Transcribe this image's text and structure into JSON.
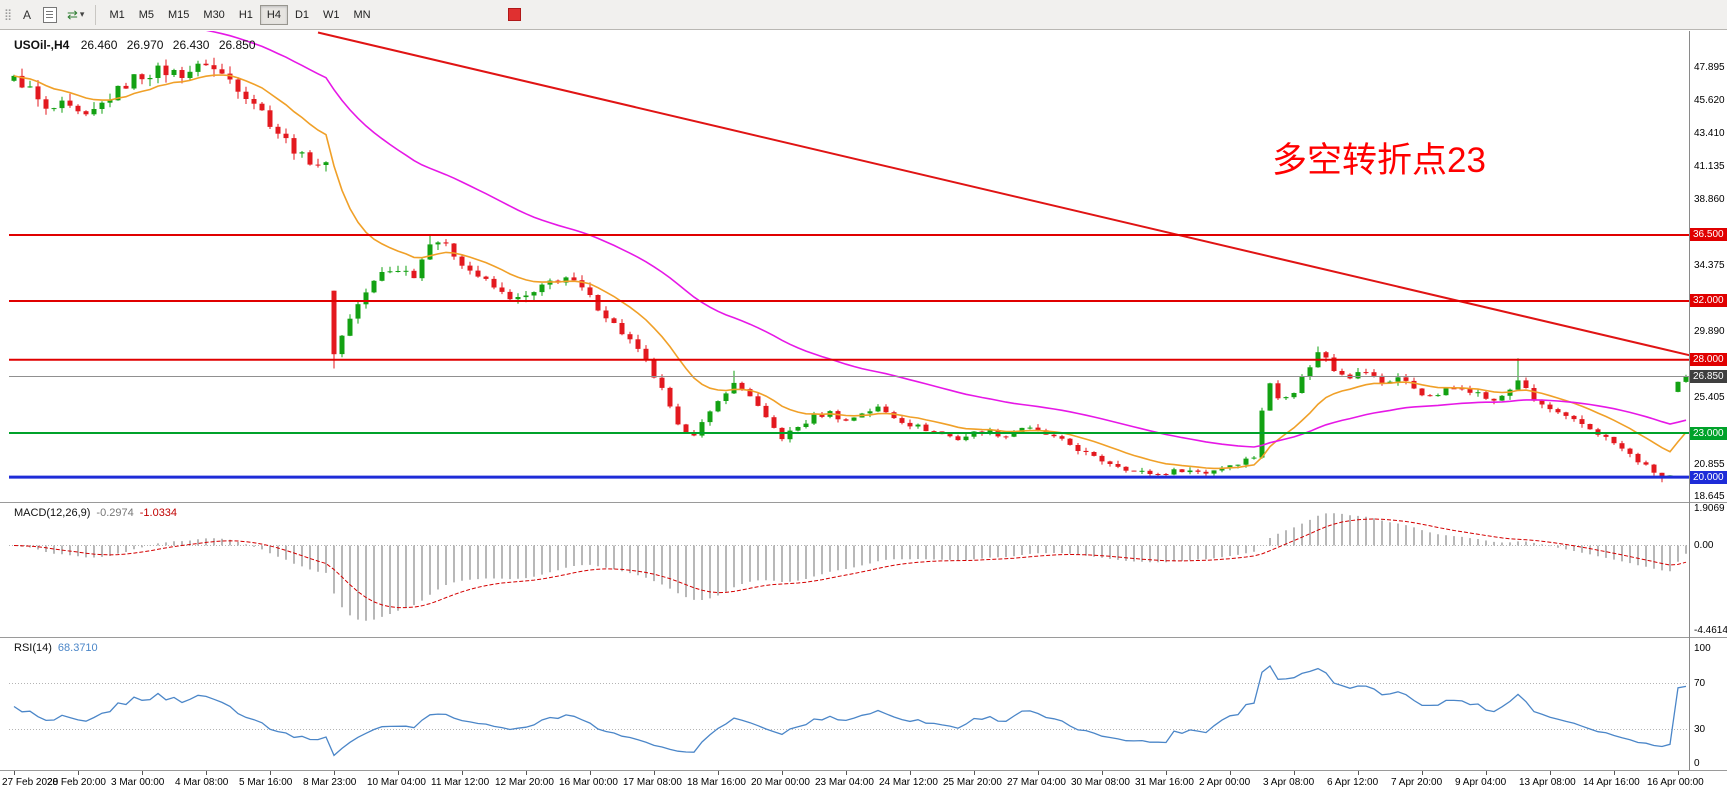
{
  "icons": {
    "drag_handle": "⣿",
    "chevron_down": "▾",
    "cycle_arrows": "⇄"
  },
  "toolbar": {
    "a_button": "A",
    "timeframes": [
      "M1",
      "M5",
      "M15",
      "M30",
      "H1",
      "H4",
      "D1",
      "W1",
      "MN"
    ],
    "active_timeframe": "H4"
  },
  "chart": {
    "title": "USOil-,H4",
    "ohlc": {
      "open": "26.460",
      "high": "26.970",
      "low": "26.430",
      "close": "26.850"
    },
    "annotation": {
      "text": "多空转折点23",
      "color": "#ff0000"
    },
    "price_axis": {
      "labels": [
        {
          "text": "47.895",
          "price": 47.895
        },
        {
          "text": "45.620",
          "price": 45.62
        },
        {
          "text": "43.410",
          "price": 43.41
        },
        {
          "text": "41.135",
          "price": 41.135
        },
        {
          "text": "38.860",
          "price": 38.86
        },
        {
          "text": "34.375",
          "price": 34.375
        },
        {
          "text": "29.890",
          "price": 29.89
        },
        {
          "text": "25.405",
          "price": 25.405
        },
        {
          "text": "20.855",
          "price": 20.855
        },
        {
          "text": "18.645",
          "price": 18.645
        }
      ],
      "badges": [
        {
          "text": "36.500",
          "price": 36.5,
          "color": "#e00000"
        },
        {
          "text": "32.000",
          "price": 32.0,
          "color": "#e00000"
        },
        {
          "text": "28.000",
          "price": 28.0,
          "color": "#e00000"
        },
        {
          "text": "26.850",
          "price": 26.85,
          "color": "#3f3f3f"
        },
        {
          "text": "23.000",
          "price": 23.0,
          "color": "#00a22a"
        },
        {
          "text": "20.000",
          "price": 20.0,
          "color": "#1e2cd8"
        }
      ]
    },
    "hlines": [
      {
        "price": 36.5,
        "color": "#e00000",
        "width": 2
      },
      {
        "price": 32.0,
        "color": "#e00000",
        "width": 2
      },
      {
        "price": 28.0,
        "color": "#e00000",
        "width": 2
      },
      {
        "price": 23.0,
        "color": "#00a22a",
        "width": 2
      },
      {
        "price": 20.0,
        "color": "#1e2cd8",
        "width": 3
      }
    ],
    "current_price": {
      "value": "26.850",
      "price": 26.85,
      "line_color": "#909090",
      "badge_color": "#3f3f3f"
    }
  },
  "chart_data": {
    "type": "candlestick",
    "symbol": "USOil-",
    "timeframe": "H4",
    "bars": 210,
    "price_view": [
      50.4,
      18.3
    ],
    "candle_colors": {
      "up": "#13a113",
      "down": "#e3191f"
    },
    "price_anchors": [
      [
        0,
        47.3
      ],
      [
        2,
        46.4
      ],
      [
        4,
        44.9
      ],
      [
        6,
        45.3
      ],
      [
        9,
        44.4
      ],
      [
        12,
        45.9
      ],
      [
        15,
        47.2
      ],
      [
        18,
        47.7
      ],
      [
        21,
        47.5
      ],
      [
        24,
        48.1
      ],
      [
        27,
        47.1
      ],
      [
        30,
        45.6
      ],
      [
        33,
        43.5
      ],
      [
        36,
        41.8
      ],
      [
        39,
        41.2
      ],
      [
        40,
        28.4
      ],
      [
        41,
        29.6
      ],
      [
        42,
        30.9
      ],
      [
        44,
        32.6
      ],
      [
        46,
        33.9
      ],
      [
        48,
        34.2
      ],
      [
        50,
        33.8
      ],
      [
        52,
        35.9
      ],
      [
        53,
        36.1
      ],
      [
        55,
        35.2
      ],
      [
        57,
        34.1
      ],
      [
        59,
        33.3
      ],
      [
        61,
        32.5
      ],
      [
        63,
        32.1
      ],
      [
        65,
        32.5
      ],
      [
        67,
        33.3
      ],
      [
        69,
        33.6
      ],
      [
        71,
        32.8
      ],
      [
        73,
        31.6
      ],
      [
        75,
        30.4
      ],
      [
        77,
        29.3
      ],
      [
        79,
        27.8
      ],
      [
        81,
        25.9
      ],
      [
        83,
        23.4
      ],
      [
        85,
        23
      ],
      [
        87,
        24.3
      ],
      [
        89,
        25.9
      ],
      [
        90,
        26.4
      ],
      [
        92,
        25.6
      ],
      [
        94,
        23.9
      ],
      [
        96,
        22.7
      ],
      [
        98,
        23.4
      ],
      [
        100,
        24.1
      ],
      [
        102,
        24.4
      ],
      [
        104,
        23.8
      ],
      [
        106,
        24.4
      ],
      [
        108,
        24.7
      ],
      [
        110,
        24.1
      ],
      [
        112,
        23.6
      ],
      [
        115,
        23.1
      ],
      [
        118,
        22.6
      ],
      [
        121,
        23.2
      ],
      [
        124,
        22.8
      ],
      [
        126,
        23.4
      ],
      [
        129,
        22.9
      ],
      [
        132,
        22.2
      ],
      [
        135,
        21.3
      ],
      [
        138,
        20.8
      ],
      [
        140,
        20.4
      ],
      [
        143,
        20.2
      ],
      [
        146,
        20.5
      ],
      [
        149,
        20.3
      ],
      [
        151,
        20.7
      ],
      [
        153,
        21
      ],
      [
        155,
        21.4
      ],
      [
        156,
        24.6
      ],
      [
        157,
        26.3
      ],
      [
        158,
        25.4
      ],
      [
        160,
        25.9
      ],
      [
        162,
        27.6
      ],
      [
        163,
        28.5
      ],
      [
        164,
        28.2
      ],
      [
        165,
        27.4
      ],
      [
        167,
        26.9
      ],
      [
        169,
        27.2
      ],
      [
        171,
        26.4
      ],
      [
        173,
        26.8
      ],
      [
        175,
        26.1
      ],
      [
        177,
        25.4
      ],
      [
        179,
        25.9
      ],
      [
        181,
        26.2
      ],
      [
        183,
        25.7
      ],
      [
        185,
        25.1
      ],
      [
        187,
        26
      ],
      [
        188,
        26.6
      ],
      [
        190,
        25.2
      ],
      [
        192,
        24.6
      ],
      [
        194,
        24
      ],
      [
        196,
        23.6
      ],
      [
        198,
        23
      ],
      [
        200,
        22.3
      ],
      [
        202,
        21.5
      ],
      [
        204,
        20.7
      ],
      [
        206,
        20
      ],
      [
        207,
        20.1
      ],
      [
        208,
        26.46
      ],
      [
        209,
        26.85
      ]
    ],
    "gap_opens": {
      "0": 47.0,
      "40": 32.7,
      "208": 25.8
    },
    "wick_overrides": {
      "24": {
        "high": 48.45
      },
      "40": {
        "low": 27.4
      },
      "52": {
        "high": 36.45
      },
      "90": {
        "high": 27.25
      },
      "163": {
        "high": 28.9
      },
      "188": {
        "high": 28.1
      },
      "206": {
        "low": 19.65
      },
      "209": {
        "high": 26.97,
        "low": 26.43
      }
    },
    "overlays": {
      "ma_fast": {
        "period": 13,
        "color": "#f0a028"
      },
      "ma_slow": {
        "period": 45,
        "seed": 58,
        "color": "#e618e6"
      },
      "trendline": {
        "from_bar": 38,
        "from_price": 50.3,
        "to_bar": 211,
        "to_price": 28.1,
        "color": "#e01414",
        "width": 2
      }
    },
    "indicators": {
      "macd": {
        "fast": 12,
        "slow": 26,
        "signal": 9,
        "histogram_color": "#9a9a9a",
        "signal_color": "#d40000",
        "range": [
          1.9069,
          -4.4614
        ]
      },
      "rsi": {
        "period": 14,
        "color": "#4b86c8",
        "levels": [
          70,
          30
        ],
        "range": [
          0,
          100
        ]
      }
    },
    "label_every_bars": 8,
    "x_labels": [
      "27 Feb 2020",
      "28 Feb 20:00",
      "3 Mar 00:00",
      "4 Mar 08:00",
      "5 Mar 16:00",
      "8 Mar 23:00",
      "10 Mar 04:00",
      "11 Mar 12:00",
      "12 Mar 20:00",
      "16 Mar 00:00",
      "17 Mar 08:00",
      "18 Mar 16:00",
      "20 Mar 00:00",
      "23 Mar 04:00",
      "24 Mar 12:00",
      "25 Mar 20:00",
      "27 Mar 04:00",
      "30 Mar 08:00",
      "31 Mar 16:00",
      "2 Apr 00:00",
      "3 Apr 08:00",
      "6 Apr 12:00",
      "7 Apr 20:00",
      "9 Apr 04:00",
      "13 Apr 08:00",
      "14 Apr 16:00",
      "16 Apr 00:00"
    ]
  },
  "macd_panel": {
    "label": "MACD(12,26,9)",
    "value1": "-0.2974",
    "value2": "-1.0334",
    "axis_labels": [
      {
        "text": "1.9069",
        "value": 1.9069
      },
      {
        "text": "0.00",
        "value": 0
      },
      {
        "text": "-4.4614",
        "value": -4.4614
      }
    ]
  },
  "rsi_panel": {
    "label": "RSI(14)",
    "value": "68.3710",
    "axis_labels": [
      {
        "text": "100",
        "value": 100
      },
      {
        "text": "70",
        "value": 70
      },
      {
        "text": "30",
        "value": 30
      },
      {
        "text": "0",
        "value": 0
      }
    ]
  }
}
